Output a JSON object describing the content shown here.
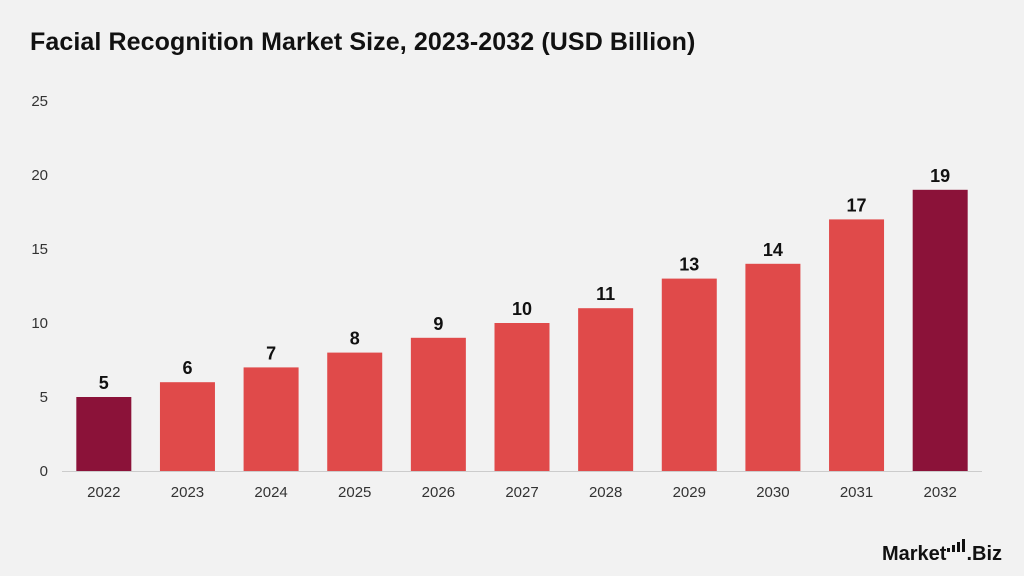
{
  "chart_data": {
    "type": "bar",
    "title": "Facial Recognition Market Size, 2023-2032 (USD Billion)",
    "xlabel": "",
    "ylabel": "",
    "categories": [
      "2022",
      "2023",
      "2024",
      "2025",
      "2026",
      "2027",
      "2028",
      "2029",
      "2030",
      "2031",
      "2032"
    ],
    "values": [
      5,
      6,
      7,
      8,
      9,
      10,
      11,
      13,
      14,
      17,
      19
    ],
    "data_labels": [
      "5",
      "6",
      "7",
      "8",
      "9",
      "10",
      "11",
      "13",
      "14",
      "17",
      "19"
    ],
    "highlighted_categories": [
      "2022",
      "2032"
    ],
    "ylim": [
      0,
      25
    ],
    "yticks": [
      0,
      5,
      10,
      15,
      20,
      25
    ],
    "grid": false,
    "legend": "none",
    "colors": {
      "bar": "#e04a4a",
      "highlight": "#8b1239",
      "axis_line": "#cccccc",
      "tick_text": "#333333",
      "label_text": "#111111"
    }
  },
  "brand": {
    "name_left": "Market",
    "name_right": ".Biz"
  }
}
